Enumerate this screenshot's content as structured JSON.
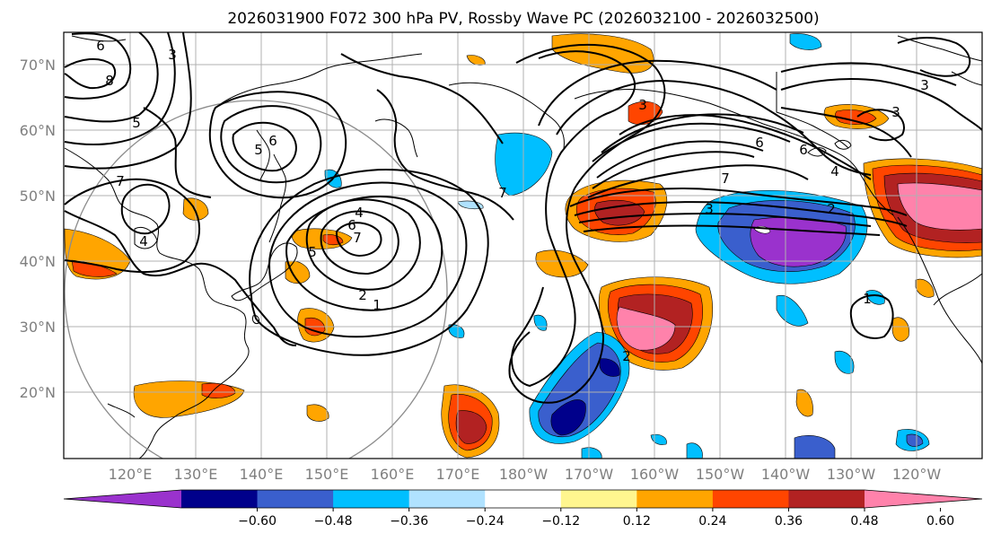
{
  "title": "2026031900 F072 300 hPa PV, Rossby Wave PC (2026032100 - 2026032500)",
  "lat_labels": [
    "70°N",
    "60°N",
    "50°N",
    "40°N",
    "30°N",
    "20°N"
  ],
  "lon_labels": [
    "120°E",
    "130°E",
    "140°E",
    "150°E",
    "160°E",
    "170°E",
    "180°W",
    "170°W",
    "160°W",
    "150°W",
    "140°W",
    "130°W",
    "120°W"
  ],
  "colorbar": {
    "tick_labels": [
      "−0.60",
      "−0.48",
      "−0.36",
      "−0.24",
      "−0.12",
      "0.12",
      "0.24",
      "0.36",
      "0.48",
      "0.60"
    ],
    "colors": [
      "#9a32cd",
      "#00008b",
      "#3a5fcd",
      "#00bfff",
      "#b0e2ff",
      "#ffffff",
      "#fff68f",
      "#ffa500",
      "#ff4500",
      "#b22222",
      "#ff82ab"
    ]
  },
  "contour_labels": [
    "6",
    "8",
    "3",
    "5",
    "5",
    "6",
    "7",
    "4",
    "4",
    "6",
    "7",
    "5",
    "2",
    "1",
    "7",
    "3",
    "3",
    "6",
    "7",
    "6",
    "4",
    "3",
    "2",
    "3",
    "1",
    "2"
  ]
}
